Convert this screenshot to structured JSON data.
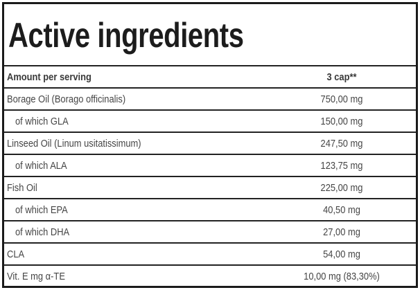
{
  "title": "Active ingredients",
  "header": {
    "name": "Amount per serving",
    "value": "3 cap**"
  },
  "rows": [
    {
      "name": "Borage Oil (Borago officinalis)",
      "value": "750,00 mg",
      "sub": false
    },
    {
      "name": "of which GLA",
      "value": "150,00 mg",
      "sub": true
    },
    {
      "name": "Linseed Oil (Linum usitatissimum)",
      "value": "247,50 mg",
      "sub": false
    },
    {
      "name": "of which ALA",
      "value": "123,75 mg",
      "sub": true
    },
    {
      "name": "Fish Oil",
      "value": "225,00 mg",
      "sub": false
    },
    {
      "name": "of which EPA",
      "value": "40,50 mg",
      "sub": true
    },
    {
      "name": "of which DHA",
      "value": "27,00 mg",
      "sub": true
    },
    {
      "name": "CLA",
      "value": "54,00 mg",
      "sub": false
    },
    {
      "name": "Vit. E mg α-TE",
      "value": "10,00 mg (83,30%)",
      "sub": false
    }
  ]
}
